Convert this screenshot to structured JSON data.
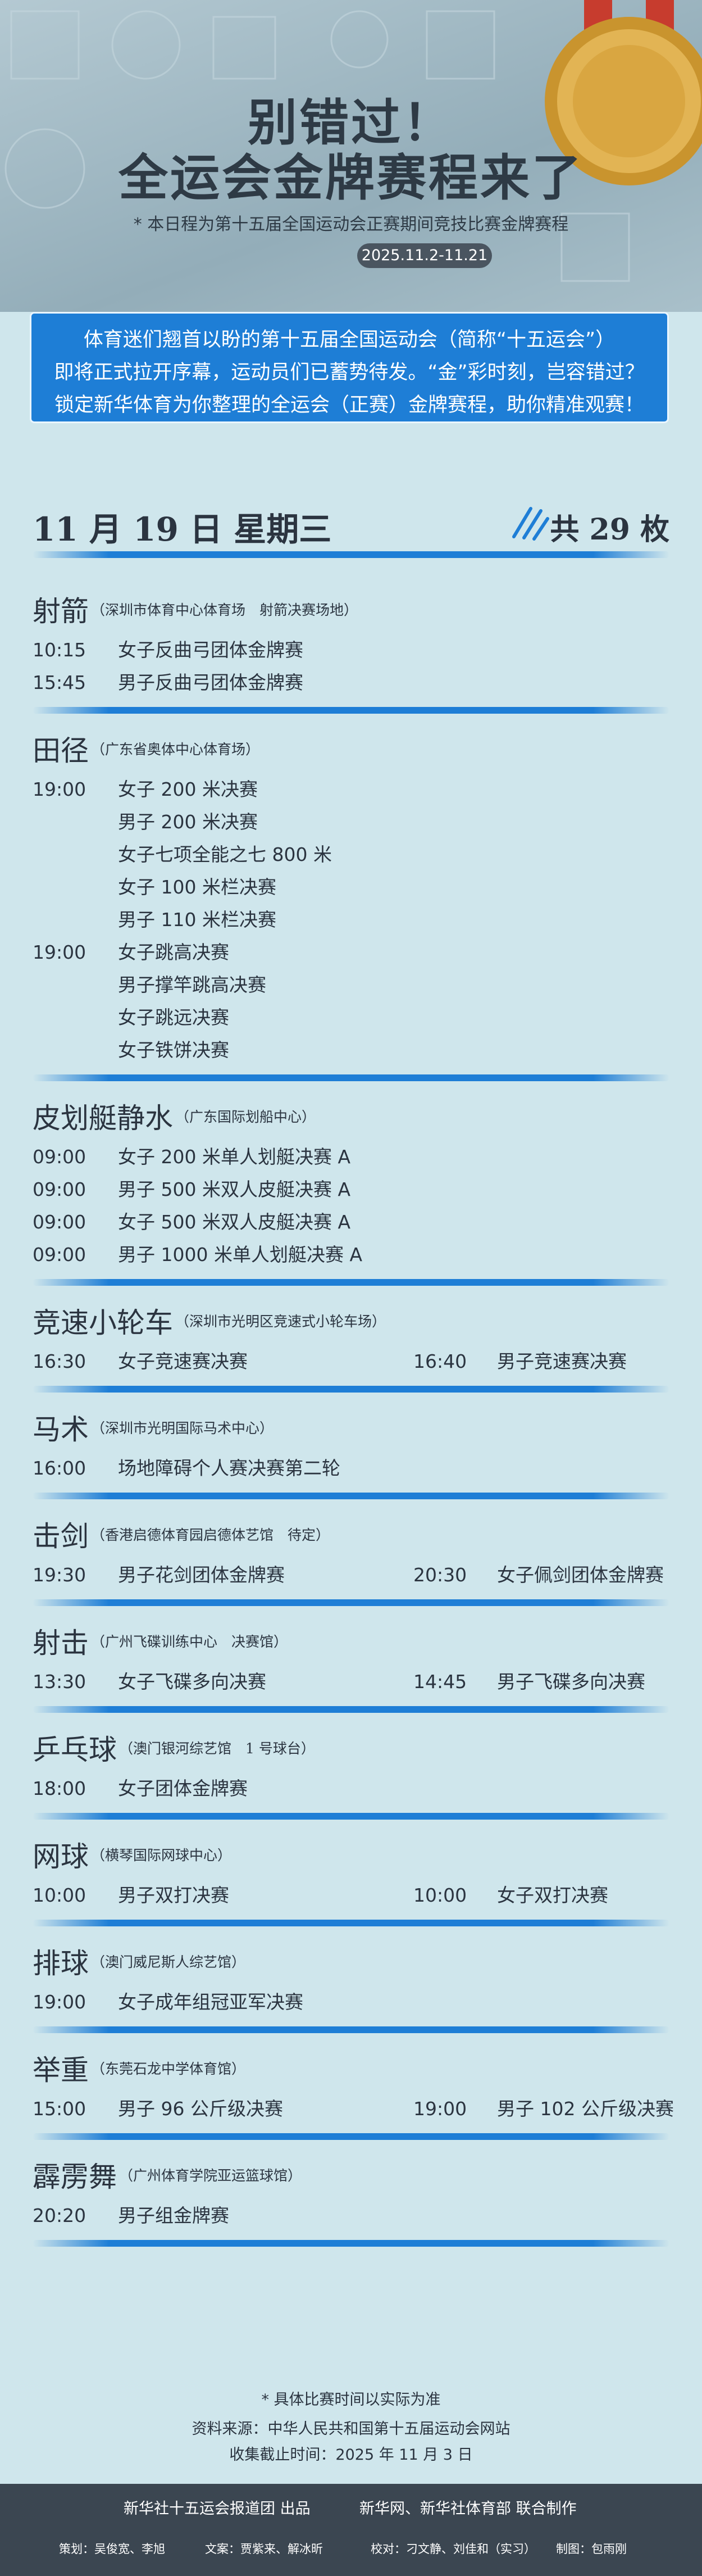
{
  "header": {
    "title_lines": [
      "别错过！",
      "全运会金牌赛程来了"
    ],
    "note": "* 本日程为第十五届全国运动会正赛期间竞技比赛金牌赛程",
    "date_range": "2025.11.2-11.21"
  },
  "intro": {
    "lines": [
      "体育迷们翘首以盼的第十五届全国运动会（简称“十五运会”）",
      "即将正式拉开序幕，运动员们已蓄势待发。“金”彩时刻，岂容错过？",
      "锁定新华体育为你整理的全运会（正赛）金牌赛程，助你精准观赛！"
    ]
  },
  "day": {
    "date": "11 月 19 日 星期三",
    "total": "共 29 枚"
  },
  "sections": [
    {
      "sport": "射箭",
      "venue": "（深圳市体育中心体育场　射箭决赛场地）",
      "rows": [
        [
          {
            "time": "10:15",
            "name": "女子反曲弓团体金牌赛"
          }
        ],
        [
          {
            "time": "15:45",
            "name": "男子反曲弓团体金牌赛"
          }
        ]
      ]
    },
    {
      "sport": "田径",
      "venue": "（广东省奥体中心体育场）",
      "rows": [
        [
          {
            "time": "19:00",
            "name": "女子 200 米决赛"
          }
        ],
        [
          {
            "time": null,
            "name": "男子 200 米决赛"
          }
        ],
        [
          {
            "time": null,
            "name": "女子七项全能之七 800 米"
          }
        ],
        [
          {
            "time": null,
            "name": "女子 100 米栏决赛"
          }
        ],
        [
          {
            "time": null,
            "name": "男子 110 米栏决赛"
          }
        ],
        [
          {
            "time": "19:00",
            "name": "女子跳高决赛"
          }
        ],
        [
          {
            "time": null,
            "name": "男子撑竿跳高决赛"
          }
        ],
        [
          {
            "time": null,
            "name": "女子跳远决赛"
          }
        ],
        [
          {
            "time": null,
            "name": "女子铁饼决赛"
          }
        ]
      ]
    },
    {
      "sport": "皮划艇静水",
      "venue": "（广东国际划船中心）",
      "rows": [
        [
          {
            "time": "09:00",
            "name": "女子 200 米单人划艇决赛 A"
          }
        ],
        [
          {
            "time": "09:00",
            "name": "男子 500 米双人皮艇决赛 A"
          }
        ],
        [
          {
            "time": "09:00",
            "name": "女子 500 米双人皮艇决赛 A"
          }
        ],
        [
          {
            "time": "09:00",
            "name": "男子 1000 米单人划艇决赛 A"
          }
        ]
      ]
    },
    {
      "sport": "竞速小轮车",
      "venue": "（深圳市光明区竞速式小轮车场）",
      "rows": [
        [
          {
            "time": "16:30",
            "name": "女子竞速赛决赛"
          },
          {
            "time": "16:40",
            "name": "男子竞速赛决赛"
          }
        ]
      ]
    },
    {
      "sport": "马术",
      "venue": "（深圳市光明国际马术中心）",
      "rows": [
        [
          {
            "time": "16:00",
            "name": "场地障碍个人赛决赛第二轮"
          }
        ]
      ]
    },
    {
      "sport": "击剑",
      "venue": "（香港启德体育园启德体艺馆　待定）",
      "rows": [
        [
          {
            "time": "19:30",
            "name": "男子花剑团体金牌赛"
          },
          {
            "time": "20:30",
            "name": "女子佩剑团体金牌赛"
          }
        ]
      ]
    },
    {
      "sport": "射击",
      "venue": "（广州飞碟训练中心　决赛馆）",
      "rows": [
        [
          {
            "time": "13:30",
            "name": "女子飞碟多向决赛"
          },
          {
            "time": "14:45",
            "name": "男子飞碟多向决赛"
          }
        ]
      ]
    },
    {
      "sport": "乒乓球",
      "venue": "（澳门银河综艺馆　1 号球台）",
      "rows": [
        [
          {
            "time": "18:00",
            "name": "女子团体金牌赛"
          }
        ]
      ]
    },
    {
      "sport": "网球",
      "venue": "（横琴国际网球中心）",
      "rows": [
        [
          {
            "time": "10:00",
            "name": "男子双打决赛"
          },
          {
            "time": "10:00",
            "name": "女子双打决赛"
          }
        ]
      ]
    },
    {
      "sport": "排球",
      "venue": "（澳门威尼斯人综艺馆）",
      "rows": [
        [
          {
            "time": "19:00",
            "name": "女子成年组冠亚军决赛"
          }
        ]
      ]
    },
    {
      "sport": "举重",
      "venue": "（东莞石龙中学体育馆）",
      "rows": [
        [
          {
            "time": "15:00",
            "name": "男子 96 公斤级决赛"
          },
          {
            "time": "19:00",
            "name": "男子 102 公斤级决赛"
          }
        ]
      ]
    },
    {
      "sport": "霹雳舞",
      "venue": "（广州体育学院亚运篮球馆）",
      "rows": [
        [
          {
            "time": "20:20",
            "name": "男子组金牌赛"
          }
        ]
      ]
    }
  ],
  "footer": {
    "note": "* 具体比赛时间以实际为准",
    "source": "资料来源：中华人民共和国第十五届运动会网站",
    "deadline": "收集截止时间：2025 年 11 月 3 日"
  },
  "credits": {
    "producer": "新华社十五运会报道团 出品",
    "co_producer": "新华网、新华社体育部 联合制作",
    "staff": [
      "策划：吴俊宽、李旭",
      "文案：贾紫来、解冰昕",
      "校对：刁文静、刘佳和（实习）",
      "制图：包雨刚"
    ]
  }
}
